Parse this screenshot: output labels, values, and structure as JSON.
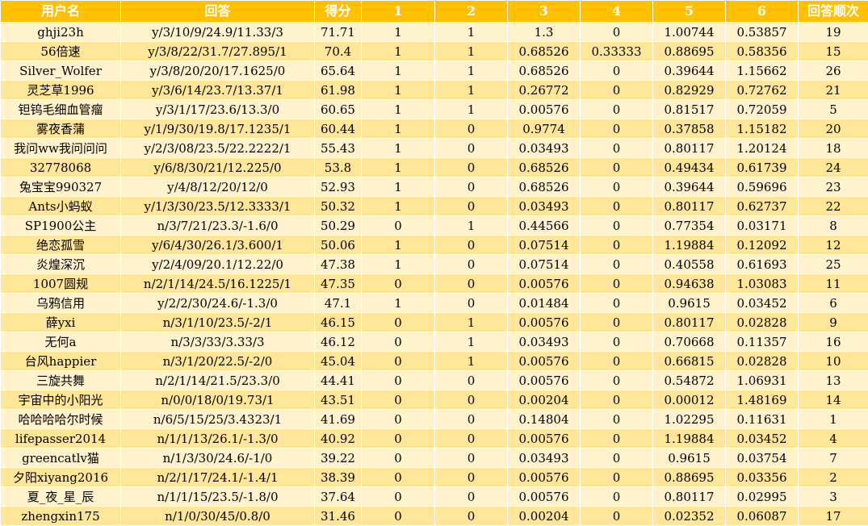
{
  "table": {
    "headers": [
      "用户名",
      "回答",
      "得分",
      "1",
      "2",
      "3",
      "4",
      "5",
      "6",
      "回答顺次"
    ],
    "rows": [
      [
        "ghji23h",
        "y/3/10/9/24.9/11.33/3",
        "71.71",
        "1",
        "1",
        "1.3",
        "0",
        "1.00744",
        "0.53857",
        "19"
      ],
      [
        "56倍速",
        "y/3/8/22/31.7/27.895/1",
        "70.4",
        "1",
        "1",
        "0.68526",
        "0.33333",
        "0.88695",
        "0.58356",
        "15"
      ],
      [
        "Silver_Wolfer",
        "y/3/8/20/20/17.1625/0",
        "65.64",
        "1",
        "1",
        "0.68526",
        "0",
        "0.39644",
        "1.15662",
        "26"
      ],
      [
        "灵芝草1996",
        "y/3/6/14/23.7/13.37/1",
        "61.98",
        "1",
        "1",
        "0.26772",
        "0",
        "0.82929",
        "0.72762",
        "21"
      ],
      [
        "钽钨毛细血管瘤",
        "y/3/1/17/23.6/13.3/0",
        "60.65",
        "1",
        "1",
        "0.00576",
        "0",
        "0.81517",
        "0.72059",
        "5"
      ],
      [
        "雾夜香蒲",
        "y/1/9/30/19.8/17.1235/1",
        "60.44",
        "1",
        "0",
        "0.9774",
        "0",
        "0.37858",
        "1.15182",
        "20"
      ],
      [
        "我问ww我问问问",
        "y/2/3/08/23.5/22.2222/1",
        "55.43",
        "1",
        "0",
        "0.03493",
        "0",
        "0.80117",
        "1.20124",
        "18"
      ],
      [
        "32778068",
        "y/6/8/30/21/12.225/0",
        "53.8",
        "1",
        "0",
        "0.68526",
        "0",
        "0.49434",
        "0.61739",
        "24"
      ],
      [
        "兔宝宝990327",
        "y/4/8/12/20/12/0",
        "52.93",
        "1",
        "0",
        "0.68526",
        "0",
        "0.39644",
        "0.59696",
        "23"
      ],
      [
        "Ants小蚂蚁",
        "y/1/3/30/23.5/12.3333/1",
        "50.32",
        "1",
        "0",
        "0.03493",
        "0",
        "0.80117",
        "0.62737",
        "22"
      ],
      [
        "SP1900公主",
        "n/3/7/21/23.3/-1.6/0",
        "50.29",
        "0",
        "1",
        "0.44566",
        "0",
        "0.77354",
        "0.03171",
        "8"
      ],
      [
        "绝恋孤雪",
        "y/6/4/30/26.1/3.600/1",
        "50.06",
        "1",
        "0",
        "0.07514",
        "0",
        "1.19884",
        "0.12092",
        "12"
      ],
      [
        "炎煌深沉",
        "y/2/4/09/20.1/12.22/0",
        "47.38",
        "1",
        "0",
        "0.07514",
        "0",
        "0.40558",
        "0.61693",
        "25"
      ],
      [
        "1007圆规",
        "n/2/1/14/24.5/16.1225/1",
        "47.35",
        "0",
        "0",
        "0.00576",
        "0",
        "0.94638",
        "1.03083",
        "11"
      ],
      [
        "乌鸦信用",
        "y/2/2/30/24.6/-1.3/0",
        "47.1",
        "1",
        "0",
        "0.01484",
        "0",
        "0.9615",
        "0.03452",
        "6"
      ],
      [
        "薛yxi",
        "n/3/1/10/23.5/-2/1",
        "46.15",
        "0",
        "1",
        "0.00576",
        "0",
        "0.80117",
        "0.02828",
        "9"
      ],
      [
        "无何a",
        "n/3/3/33/3.33/3",
        "46.12",
        "0",
        "1",
        "0.03493",
        "0",
        "0.70668",
        "0.11357",
        "16"
      ],
      [
        "台风happier",
        "n/3/1/20/22.5/-2/0",
        "45.04",
        "0",
        "1",
        "0.00576",
        "0",
        "0.66815",
        "0.02828",
        "10"
      ],
      [
        "三旋共舞",
        "n/2/1/14/21.5/23.3/0",
        "44.41",
        "0",
        "0",
        "0.00576",
        "0",
        "0.54872",
        "1.06931",
        "13"
      ],
      [
        "宇宙中的小阳光",
        "n/0/0/18/0/19.73/1",
        "43.51",
        "0",
        "0",
        "0.00204",
        "0",
        "0.00012",
        "1.48169",
        "14"
      ],
      [
        "哈哈哈哈尔时候",
        "n/6/5/15/25/3.4323/1",
        "41.69",
        "0",
        "0",
        "0.14804",
        "0",
        "1.02295",
        "0.11631",
        "1"
      ],
      [
        "lifepasser2014",
        "n/1/1/13/26.1/-1.3/0",
        "40.92",
        "0",
        "0",
        "0.00576",
        "0",
        "1.19884",
        "0.03452",
        "4"
      ],
      [
        "greencatlv猫",
        "n/1/3/30/24.6/-1/0",
        "39.22",
        "0",
        "0",
        "0.03493",
        "0",
        "0.9615",
        "0.03754",
        "7"
      ],
      [
        "夕阳xiyang2016",
        "n/2/1/17/24.1/-1.4/1",
        "38.39",
        "0",
        "0",
        "0.00576",
        "0",
        "0.88695",
        "0.03356",
        "2"
      ],
      [
        "夏_夜_星_辰",
        "n/1/1/15/23.5/-1.8/0",
        "37.64",
        "0",
        "0",
        "0.00576",
        "0",
        "0.80117",
        "0.02995",
        "3"
      ],
      [
        "zhengxin175",
        "n/1/0/30/45/0.8/0",
        "31.46",
        "0",
        "0",
        "0.00204",
        "0",
        "0.02352",
        "0.06087",
        "17"
      ]
    ]
  },
  "colors": {
    "header_bg": "#ffc000",
    "header_text": "#ffffff",
    "row_light": "#fff2cc",
    "row_dark": "#ffe699"
  }
}
